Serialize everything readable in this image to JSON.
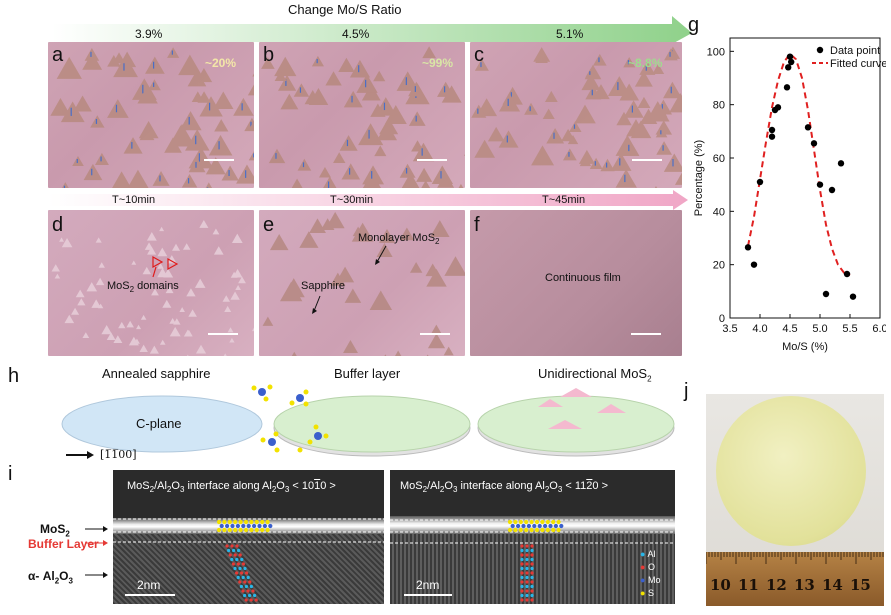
{
  "top_arrow": {
    "title": "Change Mo/S Ratio",
    "ticks": [
      "3.9%",
      "4.5%",
      "5.1%"
    ]
  },
  "time_arrow": {
    "ticks": [
      "T~10min",
      "T~30min",
      "T~45min"
    ]
  },
  "panels": {
    "a": {
      "letter": "a",
      "pct": "~20%"
    },
    "b": {
      "letter": "b",
      "pct": "~99%"
    },
    "c": {
      "letter": "c",
      "pct": "~8.8%"
    },
    "d": {
      "letter": "d",
      "label": "MoS2 domains"
    },
    "e": {
      "letter": "e",
      "label_mono": "Monolayer MoS2",
      "label_sapphire": "Sapphire"
    },
    "f": {
      "letter": "f",
      "label": "Continuous film"
    }
  },
  "h": {
    "letter": "h",
    "titles": [
      "Annealed sapphire",
      "Buffer layer",
      "Unidirectional MoS2"
    ],
    "plane_label": "C-plane",
    "direction": "[1̅1̅00]"
  },
  "i": {
    "letter": "i",
    "left_title": "MoS2/Al2O3 interface along Al2O3 < 1010 >",
    "right_title": "MoS2/Al2O3 interface along Al2O3 < 1120 >",
    "side_labels": {
      "mos2": "MoS2",
      "buffer": "Buffer Layer",
      "al2o3": "α- Al2O3"
    },
    "scale": "2nm",
    "legend": [
      {
        "name": "Al",
        "color": "#29b6e8"
      },
      {
        "name": "O",
        "color": "#e53935"
      },
      {
        "name": "Mo",
        "color": "#3a5fcd"
      },
      {
        "name": "S",
        "color": "#f2e200"
      }
    ]
  },
  "j": {
    "letter": "j",
    "ruler_numbers": [
      "10",
      "11",
      "12",
      "13",
      "14",
      "15"
    ]
  },
  "chart_data": {
    "type": "scatter",
    "panel_letter": "g",
    "xlabel": "Mo/S (%)",
    "ylabel": "Percentage (%)",
    "xlim": [
      3.5,
      6.0
    ],
    "ylim": [
      0,
      105
    ],
    "xticks": [
      "3.5",
      "4.0",
      "4.5",
      "5.0",
      "5.5",
      "6.0"
    ],
    "yticks": [
      "0",
      "20",
      "40",
      "60",
      "80",
      "100"
    ],
    "legend_position": "top-right",
    "series": [
      {
        "name": "Data point",
        "kind": "scatter",
        "color": "#000000",
        "x": [
          3.8,
          3.9,
          4.0,
          4.2,
          4.2,
          4.25,
          4.3,
          4.45,
          4.47,
          4.5,
          4.52,
          4.8,
          4.9,
          5.0,
          5.1,
          5.2,
          5.35,
          5.45,
          5.55
        ],
        "y": [
          26.5,
          20,
          51,
          68,
          70.5,
          78,
          79,
          86.5,
          94,
          98,
          96,
          71.5,
          65.5,
          50,
          9,
          48,
          58,
          16.5,
          8
        ]
      },
      {
        "name": "Fitted curve",
        "kind": "line-dashed",
        "color": "#e02020",
        "x": [
          3.8,
          3.9,
          4.0,
          4.1,
          4.2,
          4.3,
          4.4,
          4.5,
          4.6,
          4.7,
          4.8,
          4.9,
          5.0,
          5.1,
          5.2,
          5.3,
          5.4,
          5.5
        ],
        "y": [
          27,
          38,
          52,
          66,
          79,
          89,
          96,
          99,
          97,
          90,
          78,
          63,
          48,
          35,
          26,
          20,
          17,
          16
        ]
      }
    ]
  }
}
